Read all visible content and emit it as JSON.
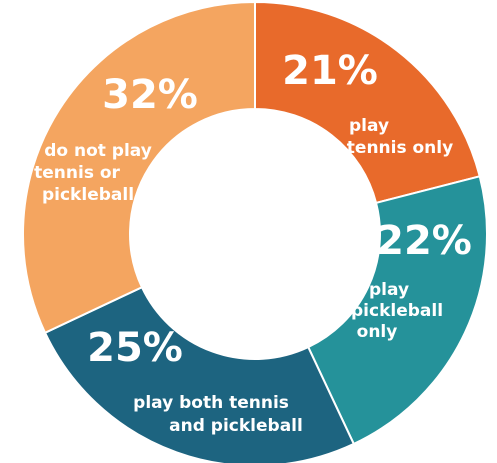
{
  "chart_data": {
    "type": "pie",
    "title": "",
    "slices": [
      {
        "label": "play tennis only",
        "label_lines": [
          "play",
          "tennis only"
        ],
        "percent_label": "21%",
        "value": 21,
        "color": "#E86A2B"
      },
      {
        "label": "play pickleball only",
        "label_lines": [
          "play",
          "pickleball",
          "only"
        ],
        "percent_label": "22%",
        "value": 22,
        "color": "#25929A"
      },
      {
        "label": "play both tennis and pickleball",
        "label_lines": [
          "play both tennis",
          "and pickleball"
        ],
        "percent_label": "25%",
        "value": 25,
        "color": "#1D6480"
      },
      {
        "label": "do not play tennis or pickleball",
        "label_lines": [
          "do not play",
          "tennis or",
          "pickleball"
        ],
        "percent_label": "32%",
        "value": 32,
        "color": "#F4A560"
      }
    ]
  }
}
